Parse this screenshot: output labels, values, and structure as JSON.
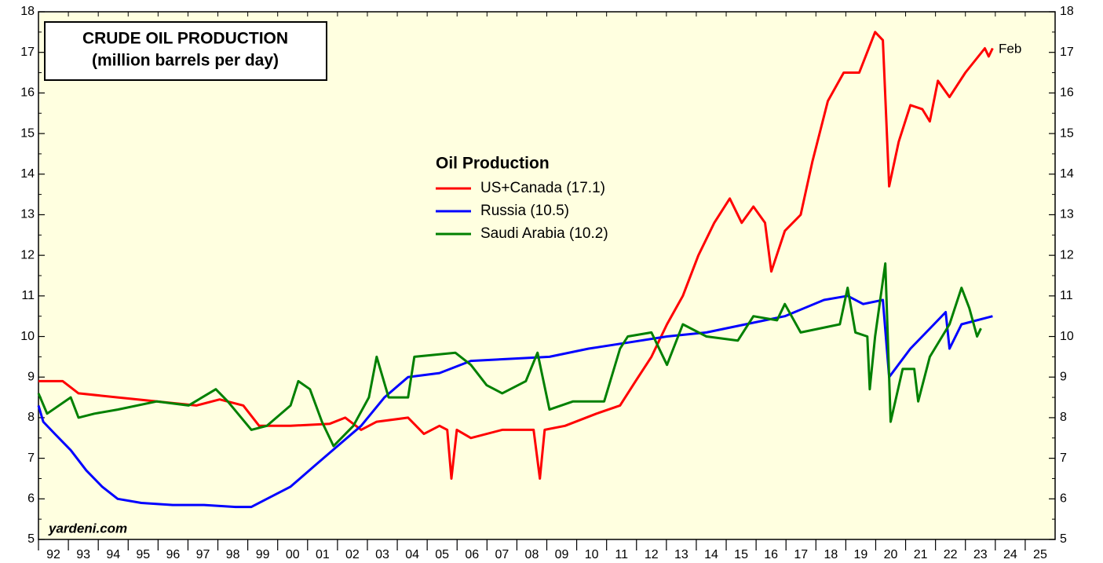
{
  "chart_data": {
    "type": "line",
    "title": [
      "CRUDE OIL PRODUCTION",
      "(million barrels per day)"
    ],
    "legend_title": "Oil Production",
    "annotations": [
      "Feb",
      "yardeni.com"
    ],
    "xlim": [
      1992,
      2026
    ],
    "xticks": [
      {
        "value": 1992,
        "label": "92"
      },
      {
        "value": 1993,
        "label": "93"
      },
      {
        "value": 1994,
        "label": "94"
      },
      {
        "value": 1995,
        "label": "95"
      },
      {
        "value": 1996,
        "label": "96"
      },
      {
        "value": 1997,
        "label": "97"
      },
      {
        "value": 1998,
        "label": "98"
      },
      {
        "value": 1999,
        "label": "99"
      },
      {
        "value": 2000,
        "label": "00"
      },
      {
        "value": 2001,
        "label": "01"
      },
      {
        "value": 2002,
        "label": "02"
      },
      {
        "value": 2003,
        "label": "03"
      },
      {
        "value": 2004,
        "label": "04"
      },
      {
        "value": 2005,
        "label": "05"
      },
      {
        "value": 2006,
        "label": "06"
      },
      {
        "value": 2007,
        "label": "07"
      },
      {
        "value": 2008,
        "label": "08"
      },
      {
        "value": 2009,
        "label": "09"
      },
      {
        "value": 2010,
        "label": "10"
      },
      {
        "value": 2011,
        "label": "11"
      },
      {
        "value": 2012,
        "label": "12"
      },
      {
        "value": 2013,
        "label": "13"
      },
      {
        "value": 2014,
        "label": "14"
      },
      {
        "value": 2015,
        "label": "15"
      },
      {
        "value": 2016,
        "label": "16"
      },
      {
        "value": 2017,
        "label": "17"
      },
      {
        "value": 2018,
        "label": "18"
      },
      {
        "value": 2019,
        "label": "19"
      },
      {
        "value": 2020,
        "label": "20"
      },
      {
        "value": 2021,
        "label": "21"
      },
      {
        "value": 2022,
        "label": "22"
      },
      {
        "value": 2023,
        "label": "23"
      },
      {
        "value": 2024,
        "label": "24"
      },
      {
        "value": 2025,
        "label": "25"
      }
    ],
    "ylim": [
      5,
      18
    ],
    "yticks": [
      5,
      6,
      7,
      8,
      9,
      10,
      11,
      12,
      13,
      14,
      15,
      16,
      17,
      18
    ],
    "y2lim": [
      5,
      18
    ],
    "y2ticks": [
      5,
      6,
      7,
      8,
      9,
      10,
      11,
      12,
      13,
      14,
      15,
      16,
      17,
      18
    ],
    "background": "#ffffe0",
    "series": [
      {
        "name": "US+Canada (17.1)",
        "color": "#ff0000",
        "x": [
          1992.0,
          1992.81,
          1993.34,
          1994.65,
          1995.96,
          1997.28,
          1998.06,
          1998.85,
          1999.38,
          2000.43,
          2001.74,
          2002.26,
          2002.79,
          2003.31,
          2004.36,
          2004.89,
          2005.41,
          2005.67,
          2005.81,
          2005.99,
          2006.46,
          2007.51,
          2008.56,
          2008.77,
          2008.93,
          2009.61,
          2010.66,
          2011.45,
          2011.97,
          2012.5,
          2013.02,
          2013.55,
          2014.07,
          2014.6,
          2015.12,
          2015.52,
          2015.91,
          2016.3,
          2016.51,
          2016.96,
          2017.49,
          2017.88,
          2018.4,
          2018.93,
          2019.45,
          2019.98,
          2020.24,
          2020.45,
          2020.77,
          2021.16,
          2021.56,
          2021.81,
          2022.08,
          2022.47,
          2023.0,
          2023.65,
          2023.78,
          2023.91
        ],
        "values": [
          8.9,
          8.9,
          8.6,
          8.5,
          8.4,
          8.3,
          8.45,
          8.3,
          7.8,
          7.8,
          7.85,
          8.0,
          7.7,
          7.9,
          8.0,
          7.6,
          7.8,
          7.7,
          6.5,
          7.7,
          7.5,
          7.7,
          7.7,
          6.5,
          7.7,
          7.8,
          8.1,
          8.3,
          8.9,
          9.5,
          10.3,
          11.0,
          12.0,
          12.8,
          13.4,
          12.8,
          13.2,
          12.8,
          11.6,
          12.6,
          13.0,
          14.3,
          15.8,
          16.5,
          16.5,
          17.5,
          17.3,
          13.7,
          14.8,
          15.7,
          15.6,
          15.3,
          16.3,
          15.9,
          16.5,
          17.1,
          16.9,
          17.1
        ]
      },
      {
        "name": "Russia (10.5)",
        "color": "#0000ff",
        "x": [
          1992.0,
          1992.16,
          1992.55,
          1993.08,
          1993.6,
          1994.13,
          1994.65,
          1995.44,
          1996.49,
          1997.54,
          1998.59,
          1999.12,
          1999.64,
          2000.43,
          2001.21,
          2002.0,
          2002.79,
          2003.57,
          2004.36,
          2005.41,
          2006.46,
          2007.77,
          2009.09,
          2010.4,
          2011.71,
          2013.02,
          2014.34,
          2015.65,
          2016.96,
          2018.27,
          2019.06,
          2019.58,
          2020.24,
          2020.45,
          2021.16,
          2021.95,
          2022.34,
          2022.47,
          2022.87,
          2023.91
        ],
        "values": [
          8.3,
          7.9,
          7.6,
          7.2,
          6.7,
          6.3,
          6.0,
          5.9,
          5.85,
          5.85,
          5.8,
          5.8,
          6.0,
          6.3,
          6.8,
          7.3,
          7.8,
          8.5,
          9.0,
          9.1,
          9.4,
          9.45,
          9.5,
          9.7,
          9.85,
          10.0,
          10.1,
          10.3,
          10.5,
          10.9,
          11.0,
          10.8,
          10.9,
          9.0,
          9.7,
          10.3,
          10.6,
          9.7,
          10.3,
          10.5
        ]
      },
      {
        "name": "Saudi Arabia (10.2)",
        "color": "#008000",
        "x": [
          1992.0,
          1992.29,
          1993.08,
          1993.34,
          1993.87,
          1994.65,
          1995.96,
          1997.02,
          1997.93,
          1998.33,
          1999.12,
          1999.64,
          2000.43,
          2000.69,
          2001.08,
          2001.48,
          2001.87,
          2002.53,
          2003.05,
          2003.31,
          2003.71,
          2004.36,
          2004.57,
          2005.94,
          2006.46,
          2006.99,
          2007.51,
          2008.3,
          2008.69,
          2009.09,
          2009.88,
          2010.92,
          2011.45,
          2011.71,
          2012.5,
          2013.02,
          2013.55,
          2014.34,
          2015.39,
          2015.91,
          2016.7,
          2016.96,
          2017.49,
          2018.8,
          2019.06,
          2019.32,
          2019.72,
          2019.8,
          2019.98,
          2020.32,
          2020.5,
          2020.9,
          2021.29,
          2021.42,
          2021.81,
          2022.47,
          2022.87,
          2023.13,
          2023.39,
          2023.52
        ],
        "values": [
          8.6,
          8.1,
          8.5,
          8.0,
          8.1,
          8.2,
          8.4,
          8.3,
          8.7,
          8.4,
          7.7,
          7.8,
          8.3,
          8.9,
          8.7,
          7.9,
          7.3,
          7.8,
          8.5,
          9.5,
          8.5,
          8.5,
          9.5,
          9.6,
          9.3,
          8.8,
          8.6,
          8.9,
          9.6,
          8.2,
          8.4,
          8.4,
          9.7,
          10.0,
          10.1,
          9.3,
          10.3,
          10.0,
          9.9,
          10.5,
          10.4,
          10.8,
          10.1,
          10.3,
          11.2,
          10.1,
          10.0,
          8.7,
          10.0,
          11.8,
          7.9,
          9.2,
          9.2,
          8.4,
          9.5,
          10.3,
          11.2,
          10.7,
          10.0,
          10.2
        ]
      }
    ]
  }
}
